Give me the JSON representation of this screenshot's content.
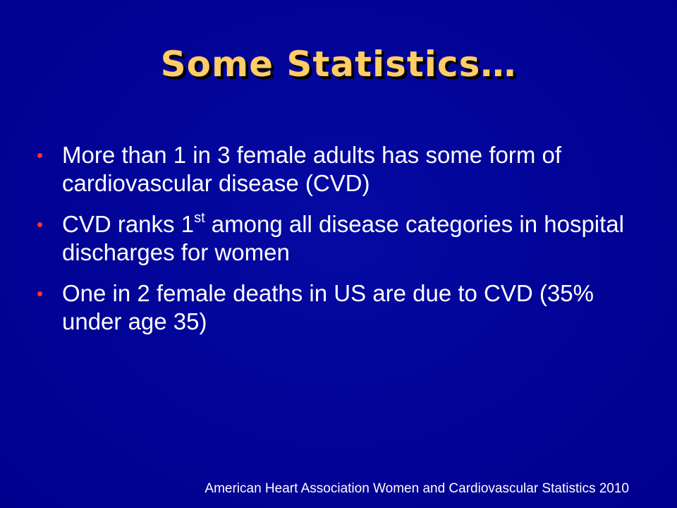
{
  "slide": {
    "title": "Some Statistics…",
    "bullets": [
      {
        "text": "More than 1 in 3 female adults has some form of cardiovascular disease (CVD)"
      },
      {
        "text_before": "CVD ranks 1",
        "superscript": "st",
        "text_after": " among all disease categories in hospital discharges for women"
      },
      {
        "text": "One in 2 female deaths in US are due to CVD (35% under age 35)"
      }
    ],
    "footer": "American Heart Association Women and Cardiovascular Statistics 2010",
    "bullet_glyph": "•"
  },
  "colors": {
    "background": "#000099",
    "title": "#ffcc66",
    "bullet_marker": "#ff3333",
    "body_text": "#ffffff"
  }
}
